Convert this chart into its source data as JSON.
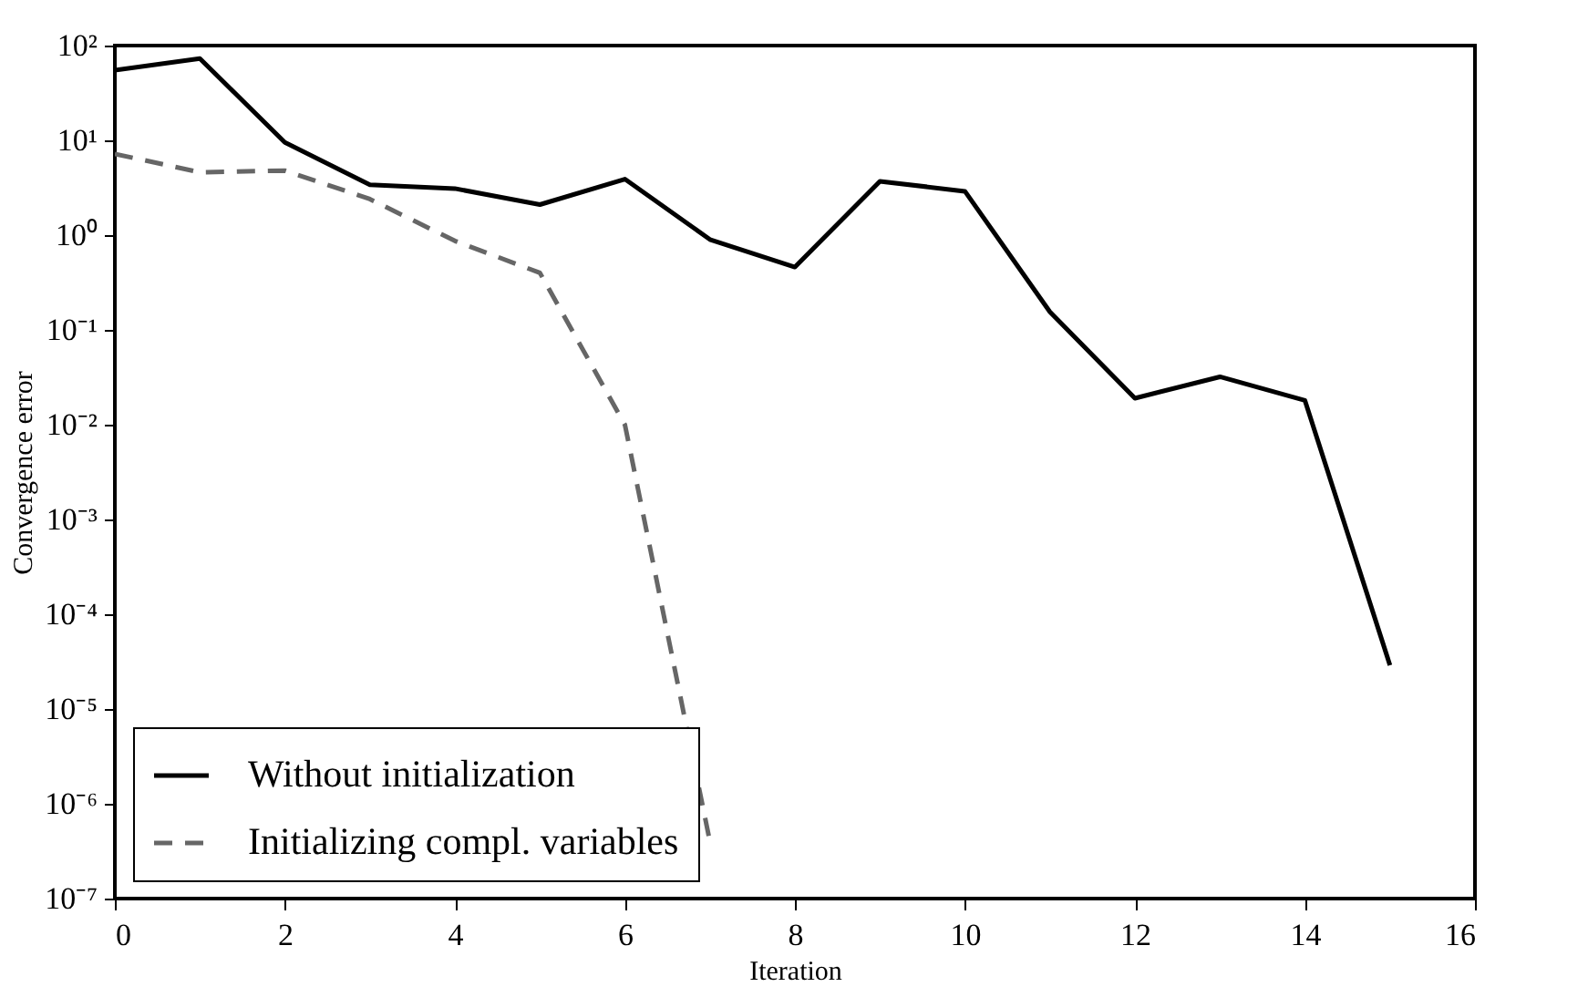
{
  "chart_data": {
    "type": "line",
    "xlabel": "Iteration",
    "ylabel": "Convergence error",
    "log": "y",
    "xlim": [
      0,
      16
    ],
    "xticks": [
      0,
      2,
      4,
      6,
      8,
      10,
      12,
      14,
      16
    ],
    "ylim": [
      1e-07,
      100
    ],
    "yticks": [
      {
        "value": 1e-07,
        "label": "10⁻⁷"
      },
      {
        "value": 1e-06,
        "label": "10⁻⁶"
      },
      {
        "value": 1e-05,
        "label": "10⁻⁵"
      },
      {
        "value": 0.0001,
        "label": "10⁻⁴"
      },
      {
        "value": 0.001,
        "label": "10⁻³"
      },
      {
        "value": 0.01,
        "label": "10⁻²"
      },
      {
        "value": 0.1,
        "label": "10⁻¹"
      },
      {
        "value": 1,
        "label": "10⁰"
      },
      {
        "value": 10,
        "label": "10¹"
      },
      {
        "value": 100,
        "label": "10²"
      }
    ],
    "grid": false,
    "legend": "bottom left",
    "series": [
      {
        "name": "Without initialization",
        "color": "#000000",
        "line_style": "solid",
        "x": [
          0,
          1,
          2,
          3,
          4,
          5,
          6,
          7,
          8,
          9,
          10,
          11,
          12,
          13,
          14,
          15
        ],
        "values": [
          55,
          73,
          9.5,
          3.4,
          3.1,
          2.1,
          3.9,
          0.9,
          0.46,
          3.7,
          2.9,
          0.155,
          0.019,
          0.032,
          0.018,
          2.9e-05
        ]
      },
      {
        "name": "Initializing compl. variables",
        "color": "#666666",
        "line_style": "dashed",
        "x": [
          0,
          1,
          2,
          3,
          4,
          5,
          6,
          7
        ],
        "values": [
          7.2,
          4.6,
          4.8,
          2.4,
          0.87,
          0.4,
          0.01,
          4e-07
        ]
      }
    ]
  }
}
